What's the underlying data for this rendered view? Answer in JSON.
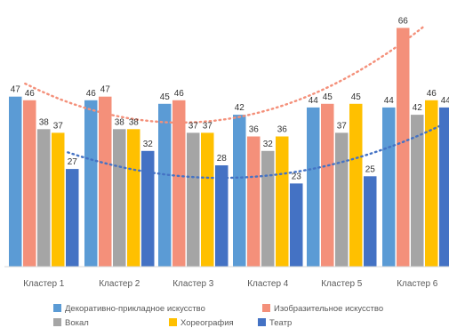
{
  "chart_data": {
    "type": "bar",
    "categories": [
      "Кластер 1",
      "Кластер 2",
      "Кластер 3",
      "Кластер 4",
      "Кластер 5",
      "Кластер 6"
    ],
    "series": [
      {
        "name": "Декоративно-прикладное искусство",
        "color": "#5b9bd5",
        "values": [
          47,
          46,
          45,
          42,
          44,
          44
        ]
      },
      {
        "name": "Изобразительное искусство",
        "color": "#f4907a",
        "values": [
          46,
          47,
          46,
          36,
          45,
          66
        ]
      },
      {
        "name": "Вокал",
        "color": "#a5a5a5",
        "values": [
          38,
          38,
          37,
          32,
          37,
          42
        ]
      },
      {
        "name": "Хореография",
        "color": "#ffc000",
        "values": [
          37,
          38,
          37,
          36,
          45,
          46
        ]
      },
      {
        "name": "Театр",
        "color": "#4472c4",
        "values": [
          27,
          32,
          28,
          23,
          25,
          44
        ]
      }
    ],
    "trendlines": [
      {
        "series": "Изобразительное искусство",
        "color": "#f4907a",
        "style": "dotted"
      },
      {
        "series": "Театр",
        "color": "#4472c4",
        "style": "dotted"
      }
    ],
    "title": "",
    "xlabel": "",
    "ylabel": "",
    "ylim": [
      0,
      70
    ],
    "grid": false,
    "legend_position": "bottom",
    "data_labels": true
  }
}
